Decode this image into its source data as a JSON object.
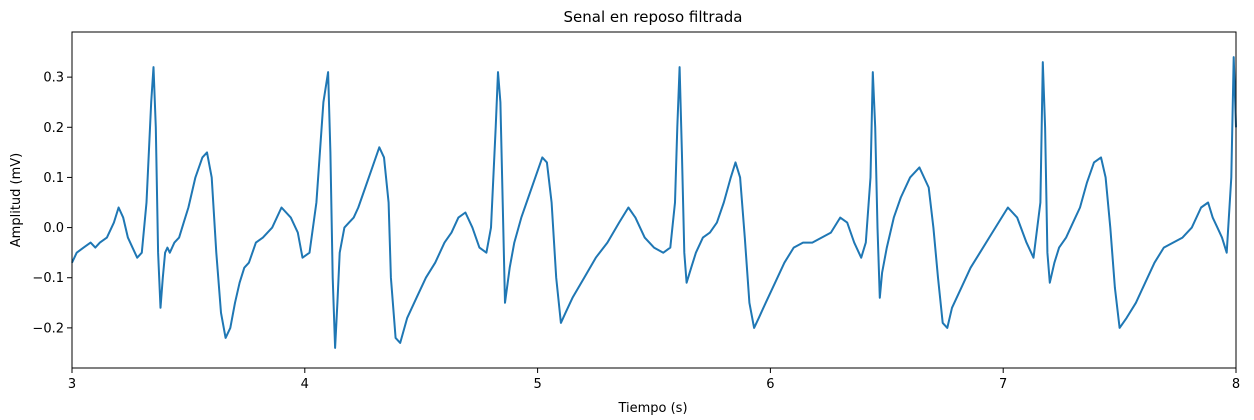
{
  "chart_data": {
    "type": "line",
    "title": "Senal en reposo filtrada",
    "xlabel": "Tiempo (s)",
    "ylabel": "Amplitud (mV)",
    "xlim": [
      3,
      8
    ],
    "ylim": [
      -0.28,
      0.39
    ],
    "x_ticks": [
      3,
      4,
      5,
      6,
      7,
      8
    ],
    "y_ticks": [
      -0.2,
      -0.1,
      0.0,
      0.1,
      0.2,
      0.3
    ],
    "y_tick_labels": [
      "−0.2",
      "−0.1",
      "0.0",
      "0.1",
      "0.2",
      "0.3"
    ],
    "grid": false,
    "color": "#1f77b4",
    "series": [
      {
        "x": [
          3.0,
          3.02,
          3.05,
          3.08,
          3.1,
          3.12,
          3.15,
          3.18,
          3.2,
          3.22,
          3.24,
          3.26,
          3.28,
          3.3,
          3.32,
          3.34,
          3.35,
          3.36,
          3.37,
          3.38,
          3.39,
          3.4,
          3.41,
          3.42,
          3.44,
          3.46,
          3.48,
          3.5,
          3.53,
          3.56,
          3.58,
          3.6,
          3.62,
          3.64,
          3.66,
          3.68,
          3.7,
          3.72,
          3.74,
          3.76,
          3.79,
          3.82,
          3.86,
          3.9,
          3.94,
          3.97,
          3.99,
          4.02,
          4.05,
          4.08,
          4.1,
          4.11,
          4.12,
          4.13,
          4.14,
          4.15,
          4.17,
          4.19,
          4.21,
          4.23,
          4.26,
          4.29,
          4.32,
          4.34,
          4.36,
          4.37,
          4.39,
          4.41,
          4.44,
          4.48,
          4.52,
          4.56,
          4.6,
          4.63,
          4.66,
          4.69,
          4.72,
          4.75,
          4.78,
          4.8,
          4.82,
          4.83,
          4.84,
          4.85,
          4.86,
          4.88,
          4.9,
          4.93,
          4.96,
          4.99,
          5.02,
          5.04,
          5.06,
          5.08,
          5.1,
          5.12,
          5.15,
          5.2,
          5.25,
          5.3,
          5.35,
          5.39,
          5.42,
          5.46,
          5.5,
          5.54,
          5.57,
          5.59,
          5.6,
          5.61,
          5.62,
          5.63,
          5.64,
          5.66,
          5.68,
          5.71,
          5.74,
          5.77,
          5.8,
          5.83,
          5.85,
          5.87,
          5.89,
          5.91,
          5.93,
          5.95,
          5.98,
          6.02,
          6.06,
          6.1,
          6.14,
          6.18,
          6.22,
          6.26,
          6.3,
          6.33,
          6.36,
          6.39,
          6.41,
          6.43,
          6.44,
          6.45,
          6.46,
          6.47,
          6.48,
          6.5,
          6.53,
          6.56,
          6.6,
          6.64,
          6.68,
          6.7,
          6.72,
          6.74,
          6.76,
          6.78,
          6.82,
          6.86,
          6.9,
          6.94,
          6.98,
          7.02,
          7.06,
          7.1,
          7.13,
          7.16,
          7.17,
          7.18,
          7.19,
          7.2,
          7.22,
          7.24,
          7.27,
          7.3,
          7.33,
          7.36,
          7.39,
          7.42,
          7.44,
          7.46,
          7.48,
          7.5,
          7.53,
          7.57,
          7.61,
          7.65,
          7.69,
          7.73,
          7.77,
          7.81,
          7.85,
          7.88,
          7.9,
          7.92,
          7.94,
          7.96,
          7.98,
          7.99,
          8.0
        ],
        "y": [
          -0.07,
          -0.05,
          -0.04,
          -0.03,
          -0.04,
          -0.03,
          -0.02,
          0.01,
          0.04,
          0.02,
          -0.02,
          -0.04,
          -0.06,
          -0.05,
          0.05,
          0.25,
          0.32,
          0.2,
          -0.05,
          -0.16,
          -0.1,
          -0.05,
          -0.04,
          -0.05,
          -0.03,
          -0.02,
          0.01,
          0.04,
          0.1,
          0.14,
          0.15,
          0.1,
          -0.05,
          -0.17,
          -0.22,
          -0.2,
          -0.15,
          -0.11,
          -0.08,
          -0.07,
          -0.03,
          -0.02,
          0.0,
          0.04,
          0.02,
          -0.01,
          -0.06,
          -0.05,
          0.05,
          0.25,
          0.31,
          0.15,
          -0.1,
          -0.24,
          -0.15,
          -0.05,
          0.0,
          0.01,
          0.02,
          0.04,
          0.08,
          0.12,
          0.16,
          0.14,
          0.05,
          -0.1,
          -0.22,
          -0.23,
          -0.18,
          -0.14,
          -0.1,
          -0.07,
          -0.03,
          -0.01,
          0.02,
          0.03,
          0.0,
          -0.04,
          -0.05,
          0.0,
          0.2,
          0.31,
          0.25,
          0.05,
          -0.15,
          -0.08,
          -0.03,
          0.02,
          0.06,
          0.1,
          0.14,
          0.13,
          0.05,
          -0.1,
          -0.19,
          -0.17,
          -0.14,
          -0.1,
          -0.06,
          -0.03,
          0.01,
          0.04,
          0.02,
          -0.02,
          -0.04,
          -0.05,
          -0.04,
          0.05,
          0.2,
          0.32,
          0.15,
          -0.05,
          -0.11,
          -0.08,
          -0.05,
          -0.02,
          -0.01,
          0.01,
          0.05,
          0.1,
          0.13,
          0.1,
          -0.02,
          -0.15,
          -0.2,
          -0.18,
          -0.15,
          -0.11,
          -0.07,
          -0.04,
          -0.03,
          -0.03,
          -0.02,
          -0.01,
          0.02,
          0.01,
          -0.03,
          -0.06,
          -0.03,
          0.1,
          0.31,
          0.2,
          0.0,
          -0.14,
          -0.09,
          -0.04,
          0.02,
          0.06,
          0.1,
          0.12,
          0.08,
          0.0,
          -0.1,
          -0.19,
          -0.2,
          -0.16,
          -0.12,
          -0.08,
          -0.05,
          -0.02,
          0.01,
          0.04,
          0.02,
          -0.03,
          -0.06,
          0.05,
          0.33,
          0.2,
          -0.05,
          -0.11,
          -0.07,
          -0.04,
          -0.02,
          0.01,
          0.04,
          0.09,
          0.13,
          0.14,
          0.1,
          0.0,
          -0.12,
          -0.2,
          -0.18,
          -0.15,
          -0.11,
          -0.07,
          -0.04,
          -0.03,
          -0.02,
          0.0,
          0.04,
          0.05,
          0.02,
          0.0,
          -0.02,
          -0.05,
          0.1,
          0.34,
          0.2
        ]
      }
    ]
  }
}
